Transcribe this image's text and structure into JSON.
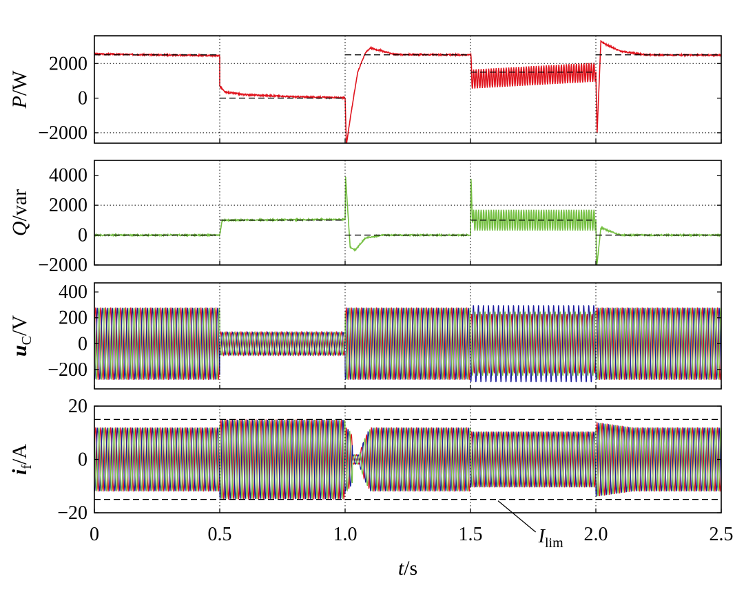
{
  "chart_data": [
    {
      "type": "line",
      "id": "P",
      "ylabel_sym": "P",
      "ylabel_unit": "/W",
      "ylim": [
        -2600,
        3600
      ],
      "yticks": [
        -2000,
        0,
        2000
      ],
      "yticklabels": [
        "−2000",
        "0",
        "2000"
      ],
      "grid_y": [
        -2000,
        2000
      ],
      "color": "#e0141e",
      "series": [
        {
          "x": [
            0,
            0.5
          ],
          "y": [
            2550,
            2450
          ],
          "kind": "steady"
        },
        {
          "x": [
            0.5,
            0.5,
            0.52,
            0.6,
            0.8,
            1.0
          ],
          "y": [
            2450,
            700,
            350,
            200,
            80,
            20
          ],
          "kind": "transient"
        },
        {
          "x": [
            1.0,
            1.005,
            1.02,
            1.05,
            1.08,
            1.1,
            1.14,
            1.2,
            1.5
          ],
          "y": [
            0,
            -2700,
            -1200,
            1500,
            2600,
            2900,
            2750,
            2520,
            2500
          ],
          "kind": "transient"
        },
        {
          "x": [
            1.5,
            1.505,
            2.0
          ],
          "y": [
            2500,
            1100,
            1500
          ],
          "kind": "oscillating",
          "amplitude": 550
        },
        {
          "x": [
            2.0,
            2.005,
            2.02,
            2.04,
            2.1,
            2.2,
            2.5
          ],
          "y": [
            1500,
            -2000,
            3300,
            3100,
            2700,
            2500,
            2480
          ],
          "kind": "transient"
        }
      ],
      "reference": [
        {
          "x": [
            0,
            0.5
          ],
          "y": [
            2500,
            2500
          ]
        },
        {
          "x": [
            0.5,
            1.0
          ],
          "y": [
            0,
            0
          ]
        },
        {
          "x": [
            1.0,
            1.5
          ],
          "y": [
            2500,
            2500
          ]
        },
        {
          "x": [
            1.5,
            2.0
          ],
          "y": [
            1500,
            1500
          ]
        },
        {
          "x": [
            2.0,
            2.5
          ],
          "y": [
            2500,
            2500
          ]
        }
      ]
    },
    {
      "type": "line",
      "id": "Q",
      "ylabel_sym": "Q",
      "ylabel_unit": "/var",
      "ylim": [
        -2000,
        5000
      ],
      "yticks": [
        -2000,
        0,
        2000,
        4000
      ],
      "yticklabels": [
        "−2000",
        "0",
        "2000",
        "4000"
      ],
      "grid_y": [
        2000
      ],
      "color": "#76c043",
      "series": [
        {
          "x": [
            0,
            0.5
          ],
          "y": [
            0,
            0
          ],
          "kind": "steady"
        },
        {
          "x": [
            0.5,
            0.51,
            0.55,
            1.0
          ],
          "y": [
            0,
            1000,
            1000,
            1050
          ],
          "kind": "transient"
        },
        {
          "x": [
            1.0,
            1.002,
            1.02,
            1.04,
            1.08,
            1.15,
            1.5
          ],
          "y": [
            1050,
            3900,
            -800,
            -1000,
            -200,
            0,
            0
          ],
          "kind": "transient"
        },
        {
          "x": [
            1.5,
            1.502,
            1.51,
            2.0
          ],
          "y": [
            0,
            3100,
            1000,
            1000
          ],
          "kind": "oscillating",
          "amplitude": 700
        },
        {
          "x": [
            2.0,
            2.003,
            2.02,
            2.05,
            2.1,
            2.5
          ],
          "y": [
            1000,
            -2200,
            500,
            300,
            0,
            0
          ],
          "kind": "transient"
        }
      ],
      "reference": [
        {
          "x": [
            0,
            0.5
          ],
          "y": [
            0,
            0
          ]
        },
        {
          "x": [
            0.5,
            1.0
          ],
          "y": [
            1000,
            1000
          ]
        },
        {
          "x": [
            1.0,
            1.5
          ],
          "y": [
            0,
            0
          ]
        },
        {
          "x": [
            1.5,
            2.0
          ],
          "y": [
            1000,
            1000
          ]
        },
        {
          "x": [
            2.0,
            2.5
          ],
          "y": [
            0,
            0
          ]
        }
      ]
    },
    {
      "type": "line",
      "id": "uC",
      "ylabel_sym": "u",
      "ylabel_sub": "C",
      "ylabel_unit": "/V",
      "ylim": [
        -350,
        470
      ],
      "yticks": [
        -200,
        0,
        200,
        400
      ],
      "yticklabels": [
        "−200",
        "0",
        "200",
        "400"
      ],
      "grid_y": [],
      "three_phase": true,
      "colors": [
        "#e0141e",
        "#1a1a9c",
        "#76c043"
      ],
      "freq": 50,
      "segments": [
        {
          "x0": 0,
          "x1": 0.5,
          "amp": 280
        },
        {
          "x0": 0.5,
          "x1": 1.0,
          "amp": 90
        },
        {
          "x0": 1.0,
          "x1": 1.5,
          "amp": 280
        },
        {
          "x0": 1.5,
          "x1": 2.0,
          "amp": 260,
          "unbalanced": [
            230,
            300,
            250
          ]
        },
        {
          "x0": 2.0,
          "x1": 2.5,
          "amp": 280
        }
      ]
    },
    {
      "type": "line",
      "id": "if",
      "ylabel_sym": "i",
      "ylabel_sub": "f",
      "ylabel_unit": "/A",
      "ylim": [
        -20,
        20
      ],
      "yticks": [
        -20,
        0,
        20
      ],
      "yticklabels": [
        "−20",
        "0",
        "20"
      ],
      "grid_y": [],
      "three_phase": true,
      "colors": [
        "#e0141e",
        "#1a1a9c",
        "#76c043"
      ],
      "freq": 50,
      "segments": [
        {
          "x0": 0,
          "x1": 0.5,
          "amp": 12
        },
        {
          "x0": 0.5,
          "x1": 1.0,
          "amp": 15
        },
        {
          "x0": 1.0,
          "x1": 1.5,
          "amp": 12,
          "dip": true
        },
        {
          "x0": 1.5,
          "x1": 2.0,
          "amp": 10.5
        },
        {
          "x0": 2.0,
          "x1": 2.5,
          "amp": 12,
          "overshoot": 14
        }
      ],
      "limit": 15,
      "limit_label": "I",
      "limit_label_sub": "lim"
    }
  ],
  "xaxis": {
    "xlim": [
      0,
      2.5
    ],
    "ticks": [
      0,
      0.5,
      1.0,
      1.5,
      2.0,
      2.5
    ],
    "ticklabels": [
      "0",
      "0.5",
      "1.0",
      "1.5",
      "2.0",
      "2.5"
    ],
    "label_sym": "t",
    "label_unit": "/s",
    "vgrid": [
      0.5,
      1.0,
      1.5,
      2.0
    ]
  }
}
